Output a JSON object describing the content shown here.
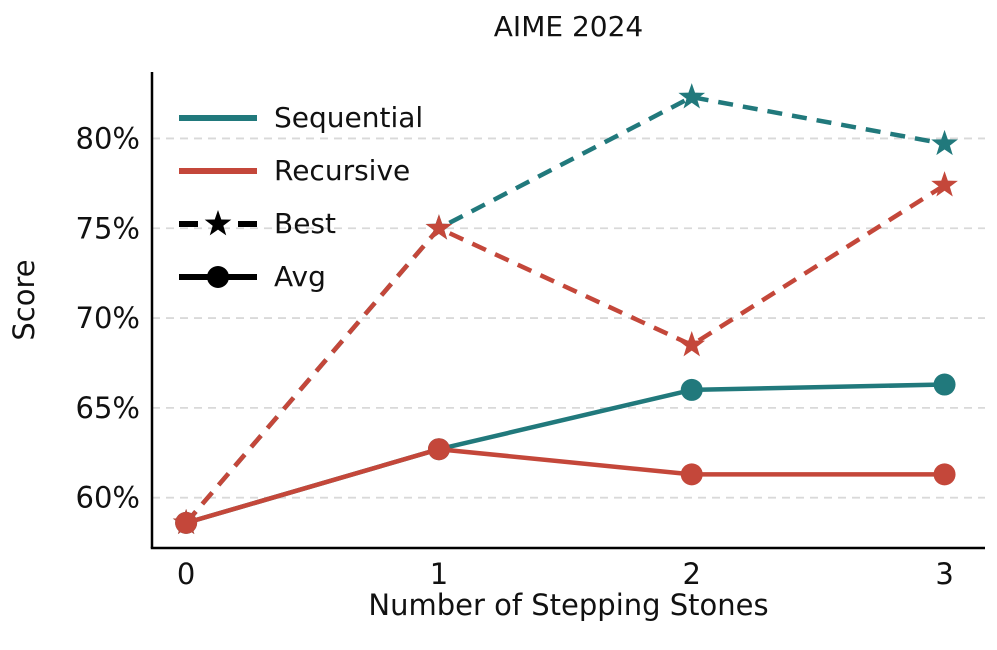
{
  "figure": {
    "title": "AIME 2024",
    "xlabel": "Number of Stepping Stones",
    "ylabel": "Score"
  },
  "legend": {
    "position": "upper-left",
    "frame": false,
    "items": [
      {
        "label": "Sequential",
        "kind": "color-key",
        "color": "#21797c",
        "dash": false,
        "marker": "none"
      },
      {
        "label": "Recursive",
        "kind": "color-key",
        "color": "#c4473a",
        "dash": false,
        "marker": "none"
      },
      {
        "label": "Best",
        "kind": "style-key",
        "color": "#000000",
        "dash": true,
        "marker": "star"
      },
      {
        "label": "Avg",
        "kind": "style-key",
        "color": "#000000",
        "dash": false,
        "marker": "circle"
      }
    ]
  },
  "chart_data": {
    "type": "line",
    "title": "AIME 2024",
    "xlabel": "Number of Stepping Stones",
    "ylabel": "Score",
    "x": [
      0,
      1,
      2,
      3
    ],
    "xtick_labels": [
      "0",
      "1",
      "2",
      "3"
    ],
    "ytick_values": [
      60,
      65,
      70,
      75,
      80
    ],
    "ytick_labels": [
      "60%",
      "65%",
      "70%",
      "75%",
      "80%"
    ],
    "xlim": [
      -0.135,
      3.16
    ],
    "ylim": [
      57.2,
      83.7
    ],
    "grid": "horizontal-dashed",
    "legend_position": "upper-left",
    "series": [
      {
        "name": "Sequential Best",
        "group": "Sequential",
        "stat": "Best",
        "color": "#21797c",
        "dash": true,
        "marker": "star",
        "values": [
          58.6,
          75.0,
          82.3,
          79.7
        ]
      },
      {
        "name": "Recursive Best",
        "group": "Recursive",
        "stat": "Best",
        "color": "#c4473a",
        "dash": true,
        "marker": "star",
        "values": [
          58.6,
          75.0,
          68.5,
          77.4
        ]
      },
      {
        "name": "Sequential Avg",
        "group": "Sequential",
        "stat": "Avg",
        "color": "#21797c",
        "dash": false,
        "marker": "circle",
        "values": [
          58.6,
          62.7,
          66.0,
          66.3
        ]
      },
      {
        "name": "Recursive Avg",
        "group": "Recursive",
        "stat": "Avg",
        "color": "#c4473a",
        "dash": false,
        "marker": "circle",
        "values": [
          58.6,
          62.7,
          61.3,
          61.3
        ]
      }
    ],
    "colors": {
      "sequential": "#21797c",
      "recursive": "#c4473a",
      "grid": "#d9d9d9",
      "axis": "#000000",
      "text": "#111111",
      "background": "#ffffff"
    }
  }
}
